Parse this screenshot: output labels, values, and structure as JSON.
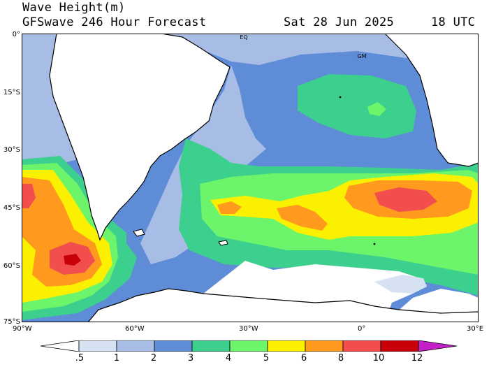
{
  "header": {
    "title": "Wave Height(m)",
    "model": "GFSwave 246 Hour Forecast",
    "date": "Sat 28 Jun 2025",
    "time": "18 UTC"
  },
  "map": {
    "lat_labels": [
      "0°",
      "15°S",
      "30°S",
      "45°S",
      "60°S",
      "75°S"
    ],
    "lon_labels": [
      "90°W",
      "60°W",
      "30°W",
      "0°",
      "30°E"
    ],
    "markers": {
      "equator": "EQ",
      "greenwich": "GM"
    },
    "land_color": "#ffffff",
    "sea_ice_color": "#ffffff"
  },
  "colorbar": {
    "labels": [
      ".5",
      "1",
      "2",
      "3",
      "4",
      "5",
      "6",
      "8",
      "10",
      "12"
    ],
    "colors": [
      "#ffffff",
      "#d6e2f2",
      "#a7bde6",
      "#5f8cd6",
      "#3ccf8e",
      "#6cf56a",
      "#fbf000",
      "#ff9a1e",
      "#f24e4e",
      "#c8000a",
      "#c420c8"
    ]
  }
}
